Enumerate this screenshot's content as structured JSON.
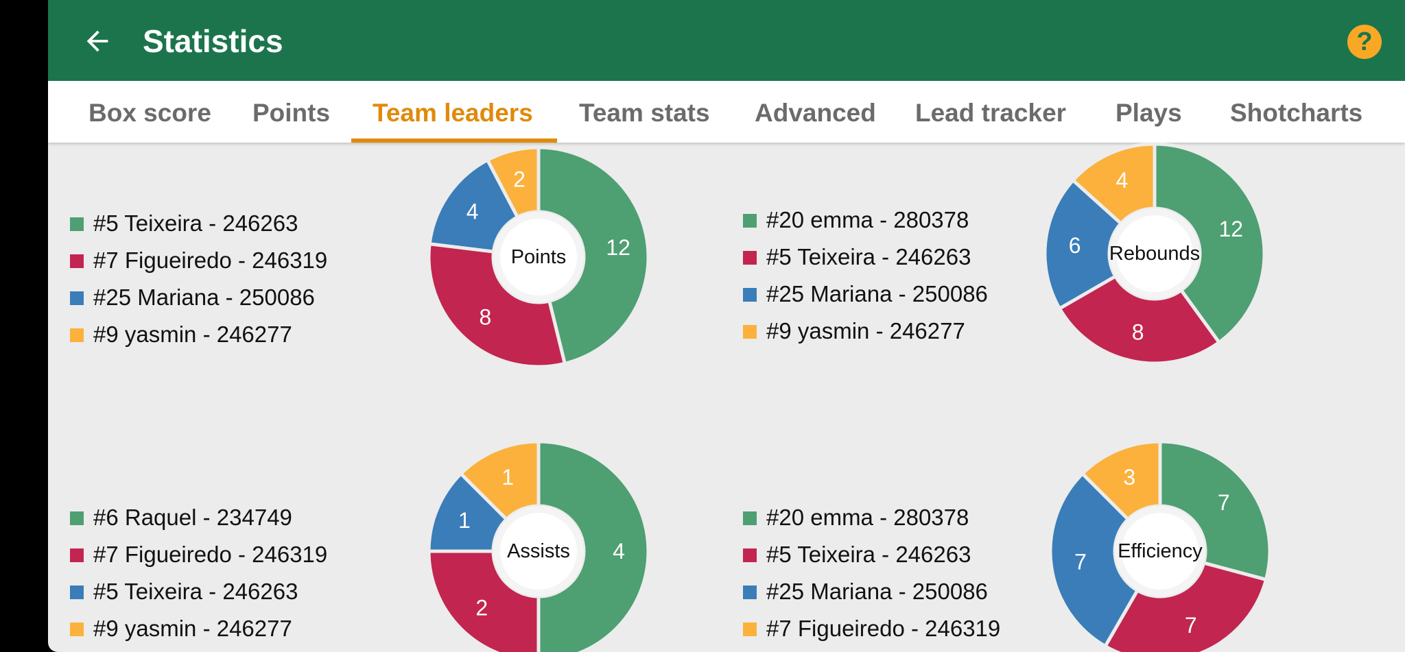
{
  "header": {
    "title": "Statistics",
    "back_icon": "arrow-left-icon",
    "help_icon": "question-mark-icon",
    "help_glyph": "?"
  },
  "tabs": [
    {
      "label": "Box score",
      "active": false
    },
    {
      "label": "Points",
      "active": false
    },
    {
      "label": "Team leaders",
      "active": true
    },
    {
      "label": "Team stats",
      "active": false
    },
    {
      "label": "Advanced",
      "active": false
    },
    {
      "label": "Lead tracker",
      "active": false
    },
    {
      "label": "Plays",
      "active": false
    },
    {
      "label": "Shotcharts",
      "active": false
    }
  ],
  "colors": {
    "appbar": "#1c744d",
    "accent": "#e08a0b",
    "help": "#f9a825",
    "series": [
      "#4e9f72",
      "#c2254f",
      "#3a7db8",
      "#fbb13c"
    ]
  },
  "chart_data": [
    {
      "type": "pie",
      "center_label": "Points",
      "legend": [
        "#5 Teixeira - 246263",
        "#7 Figueiredo - 246319",
        "#25 Mariana - 250086",
        "#9 yasmin - 246277"
      ],
      "values": [
        12,
        8,
        4,
        2
      ]
    },
    {
      "type": "pie",
      "center_label": "Rebounds",
      "legend": [
        "#20 emma - 280378",
        "#5 Teixeira - 246263",
        "#25 Mariana - 250086",
        "#9 yasmin - 246277"
      ],
      "values": [
        12,
        8,
        6,
        4
      ]
    },
    {
      "type": "pie",
      "center_label": "Assists",
      "legend": [
        "#6 Raquel - 234749",
        "#7 Figueiredo - 246319",
        "#5 Teixeira - 246263",
        "#9 yasmin - 246277"
      ],
      "values": [
        4,
        2,
        1,
        1
      ]
    },
    {
      "type": "pie",
      "center_label": "Efficiency",
      "legend": [
        "#20 emma - 280378",
        "#5 Teixeira - 246263",
        "#25 Mariana - 250086",
        "#7 Figueiredo - 246319"
      ],
      "values": [
        7,
        7,
        7,
        3
      ]
    }
  ]
}
